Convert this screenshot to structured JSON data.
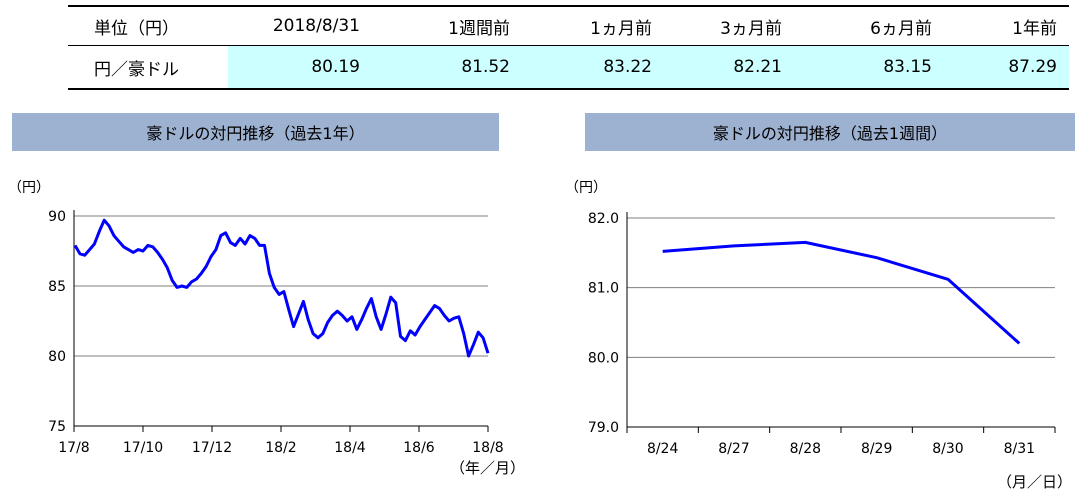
{
  "rate_table": {
    "header": [
      "単位（円）",
      "2018/8/31",
      "1週間前",
      "1ヵ月前",
      "3ヵ月前",
      "6ヵ月前",
      "1年前"
    ],
    "row_label": "円／豪ドル",
    "values": [
      "80.19",
      "81.52",
      "83.22",
      "82.21",
      "83.15",
      "87.29"
    ],
    "highlight_color": "#ccffff"
  },
  "colors": {
    "panel_title_bg": "#9db1d1",
    "series": "#0000ff",
    "grid": "#808080"
  },
  "chart_data": [
    {
      "type": "line",
      "title": "豪ドルの対円推移（過去1年）",
      "ylabel": "（円）",
      "xlabel": "（年／月）",
      "ylim": [
        75,
        90
      ],
      "yticks": [
        "90",
        "85",
        "80",
        "75"
      ],
      "xticks": [
        "17/8",
        "17/10",
        "17/12",
        "18/2",
        "18/4",
        "18/6",
        "18/8"
      ],
      "grid": true,
      "series": [
        {
          "values": [
            87.9,
            87.3,
            87.2,
            87.6,
            88.0,
            88.9,
            89.7,
            89.3,
            88.6,
            88.2,
            87.8,
            87.6,
            87.4,
            87.6,
            87.5,
            87.9,
            87.8,
            87.4,
            86.9,
            86.3,
            85.4,
            84.9,
            85.0,
            84.9,
            85.3,
            85.5,
            85.9,
            86.4,
            87.1,
            87.6,
            88.6,
            88.8,
            88.1,
            87.9,
            88.4,
            88.0,
            88.6,
            88.4,
            87.9,
            87.9,
            85.9,
            84.9,
            84.4,
            84.6,
            83.3,
            82.1,
            83.0,
            83.9,
            82.6,
            81.6,
            81.3,
            81.6,
            82.4,
            82.9,
            83.2,
            82.9,
            82.5,
            82.8,
            81.9,
            82.6,
            83.4,
            84.1,
            82.8,
            81.9,
            83.0,
            84.2,
            83.8,
            81.4,
            81.1,
            81.8,
            81.5,
            82.1,
            82.6,
            83.1,
            83.6,
            83.4,
            82.9,
            82.5,
            82.7,
            82.8,
            81.6,
            80.0,
            80.8,
            81.7,
            81.3,
            80.2
          ]
        }
      ]
    },
    {
      "type": "line",
      "title": "豪ドルの対円推移（過去1週間）",
      "ylabel": "（円）",
      "xlabel": "（月／日）",
      "ylim": [
        79.0,
        82.0
      ],
      "yticks": [
        "82.0",
        "81.0",
        "80.0",
        "79.0"
      ],
      "categories": [
        "8/24",
        "8/27",
        "8/28",
        "8/29",
        "8/30",
        "8/31"
      ],
      "grid": true,
      "series": [
        {
          "values": [
            81.52,
            81.6,
            81.65,
            81.43,
            81.12,
            80.2
          ]
        }
      ]
    }
  ]
}
